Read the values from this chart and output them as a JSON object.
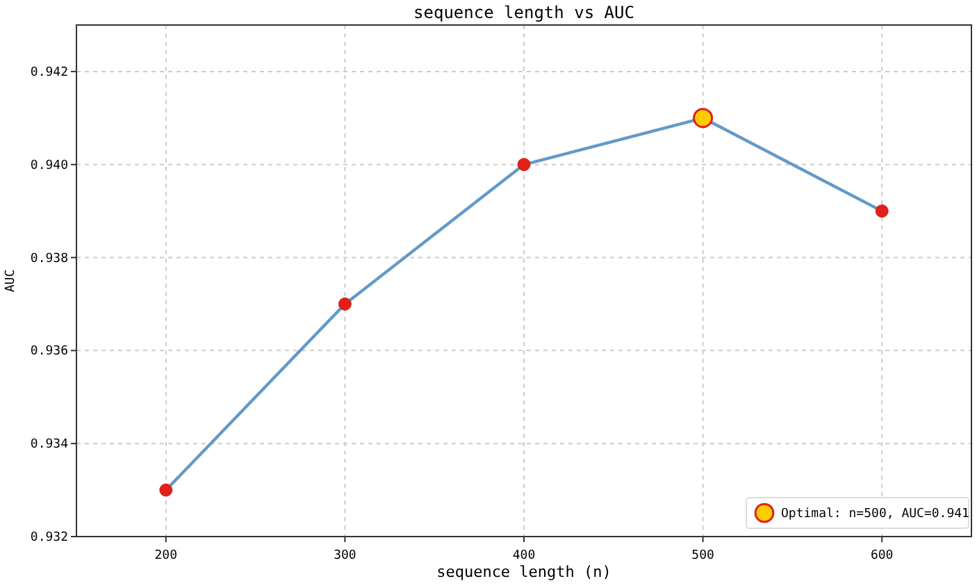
{
  "chart_data": {
    "type": "line",
    "title": "sequence length vs AUC",
    "xlabel": "sequence length (n)",
    "ylabel": "AUC",
    "x": [
      200,
      300,
      400,
      500,
      600
    ],
    "series": [
      {
        "color": "#6399c8",
        "marker": "none",
        "values": [
          0.933,
          0.937,
          0.94,
          0.941,
          0.939
        ]
      },
      {
        "type": "scatter",
        "color": "#e0201b",
        "values": [
          0.933,
          0.937,
          0.94,
          null,
          0.939
        ]
      },
      {
        "type": "scatter",
        "name": "Optimal: n=500, AUC=0.941",
        "color": "#ffcc00",
        "x": [
          500
        ],
        "values": [
          0.941
        ]
      }
    ],
    "xlim": [
      150,
      650
    ],
    "xticks": [
      200,
      300,
      400,
      500,
      600
    ],
    "ylim": [
      0.932,
      0.943
    ],
    "yticks": [
      0.932,
      0.934,
      0.936,
      0.938,
      {
        "value": 0.94,
        "label": "0.940"
      },
      0.942
    ],
    "grid": true,
    "legend": "bottom right",
    "marker": "circle",
    "line_style": "solid"
  }
}
